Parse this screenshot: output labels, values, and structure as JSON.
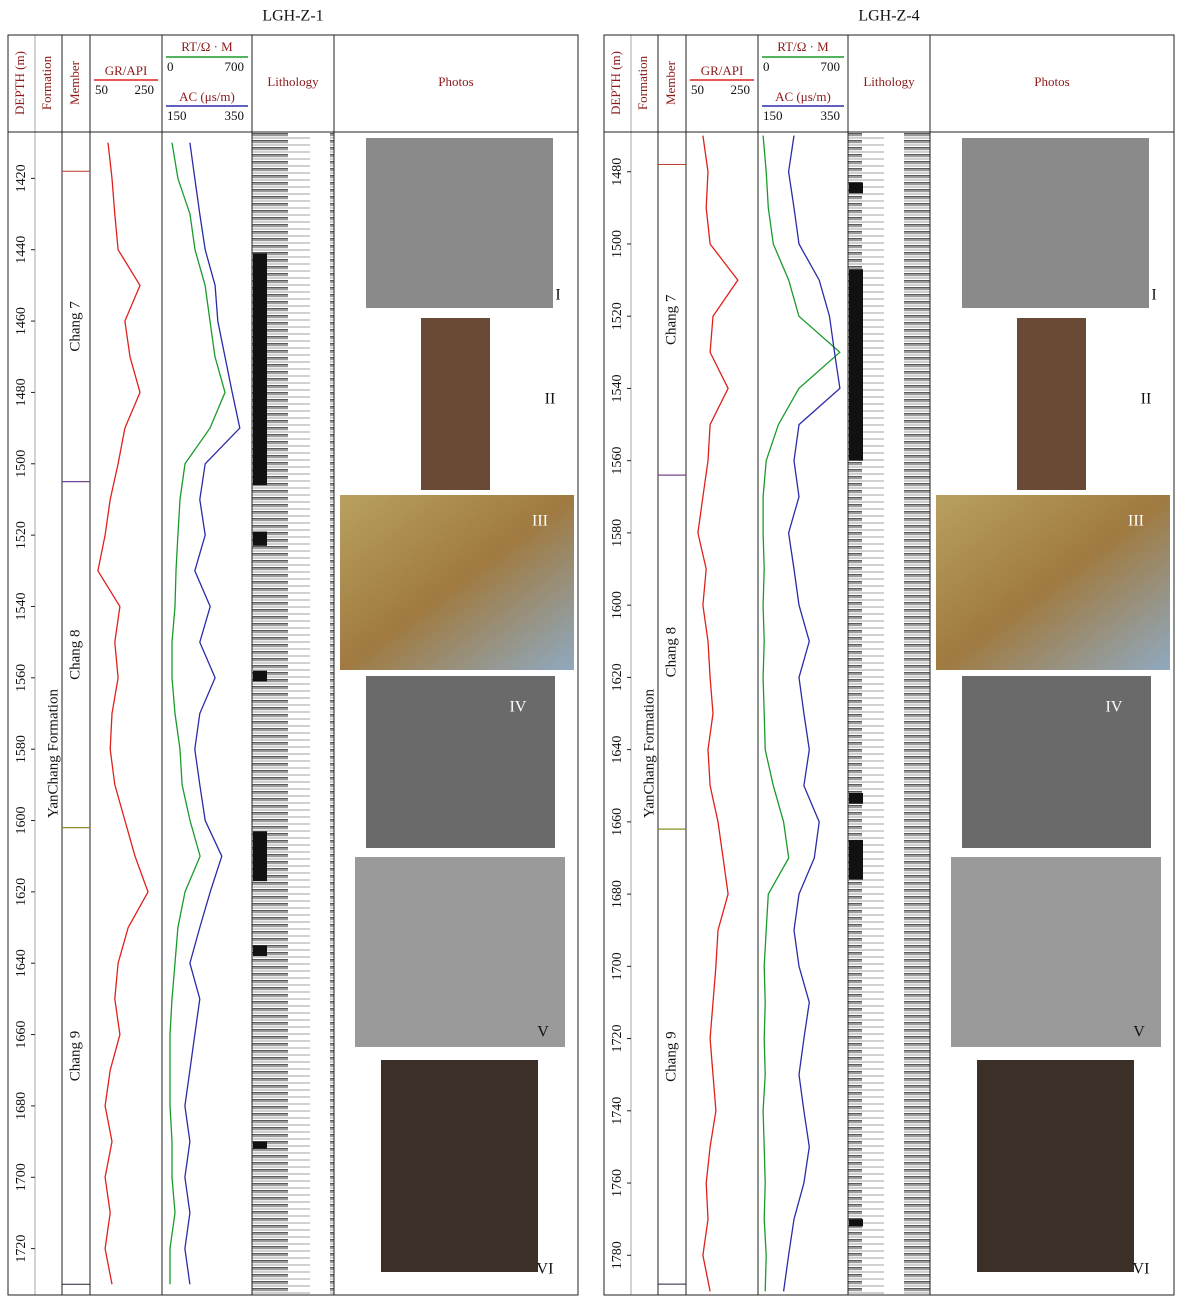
{
  "chart_data": [
    {
      "type": "well-log",
      "title": "LGH-Z-1",
      "headers": {
        "depth": "DEPTH (m)",
        "formation": "Formation",
        "member": "Member",
        "lithology": "Lithology",
        "photos": "Photos"
      },
      "formation_name": "YanChang Formation",
      "ylim": [
        1407,
        1733
      ],
      "yticks": [
        1420,
        1440,
        1460,
        1480,
        1500,
        1520,
        1540,
        1560,
        1580,
        1600,
        1620,
        1640,
        1660,
        1680,
        1700,
        1720
      ],
      "depth": [
        1410,
        1420,
        1430,
        1440,
        1450,
        1460,
        1470,
        1480,
        1490,
        1500,
        1510,
        1520,
        1530,
        1540,
        1550,
        1560,
        1570,
        1580,
        1590,
        1600,
        1610,
        1620,
        1630,
        1640,
        1650,
        1660,
        1670,
        1680,
        1690,
        1700,
        1710,
        1720,
        1730
      ],
      "curves": [
        {
          "name": "GR/API",
          "color": "#e0201b",
          "range": [
            50,
            250
          ],
          "values": [
            100,
            111,
            119,
            128,
            189,
            147,
            161,
            189,
            147,
            128,
            106,
            92,
            72,
            133,
            119,
            128,
            111,
            106,
            119,
            147,
            175,
            211,
            156,
            128,
            119,
            133,
            106,
            92,
            111,
            92,
            106,
            92,
            111
          ]
        },
        {
          "name": "RT/Ω · M",
          "color": "#1a9a2a",
          "range": [
            0,
            700
          ],
          "values": [
            78,
            124,
            218,
            257,
            335,
            373,
            412,
            490,
            373,
            179,
            140,
            124,
            109,
            101,
            78,
            78,
            101,
            140,
            156,
            218,
            296,
            179,
            124,
            101,
            78,
            62,
            62,
            62,
            78,
            78,
            101,
            62,
            62
          ]
        },
        {
          "name": "AC (μs/m)",
          "color": "#2b2ba8",
          "range": [
            150,
            350
          ],
          "values": [
            212,
            223,
            234,
            246,
            268,
            274,
            290,
            306,
            323,
            246,
            234,
            246,
            223,
            257,
            234,
            268,
            234,
            223,
            234,
            246,
            283,
            257,
            234,
            212,
            234,
            223,
            212,
            201,
            212,
            201,
            212,
            201,
            212
          ]
        }
      ],
      "members": [
        {
          "name": "Chang 7",
          "top": 1418,
          "bottom": 1505,
          "color": "#c0392b"
        },
        {
          "name": "Chang 8",
          "top": 1505,
          "bottom": 1602,
          "color": "#7b3fa0"
        },
        {
          "name": "Chang 9",
          "top": 1602,
          "bottom": 1730,
          "color": "#9a9a20"
        }
      ],
      "black_intervals": [
        [
          1441,
          1506
        ],
        [
          1603,
          1617
        ],
        [
          1519,
          1523
        ],
        [
          1558,
          1561
        ],
        [
          1635,
          1638
        ],
        [
          1690,
          1692
        ]
      ],
      "photos": [
        "I",
        "II",
        "III",
        "IV",
        "V",
        "VI"
      ]
    },
    {
      "type": "well-log",
      "title": "LGH-Z-4",
      "headers": {
        "depth": "DEPTH (m)",
        "formation": "Formation",
        "member": "Member",
        "lithology": "Lithology",
        "photos": "Photos"
      },
      "formation_name": "YanChang Formation",
      "ylim": [
        1469,
        1791
      ],
      "yticks": [
        1480,
        1500,
        1520,
        1540,
        1560,
        1580,
        1600,
        1620,
        1640,
        1660,
        1680,
        1700,
        1720,
        1740,
        1760,
        1780
      ],
      "depth": [
        1470,
        1480,
        1490,
        1500,
        1510,
        1520,
        1530,
        1540,
        1550,
        1560,
        1570,
        1580,
        1590,
        1600,
        1610,
        1620,
        1630,
        1640,
        1650,
        1660,
        1670,
        1680,
        1690,
        1700,
        1710,
        1720,
        1730,
        1740,
        1750,
        1760,
        1770,
        1780,
        1790
      ],
      "curves": [
        {
          "name": "GR/API",
          "color": "#e0201b",
          "range": [
            50,
            250
          ],
          "values": [
            97,
            111,
            106,
            117,
            194,
            125,
            117,
            167,
            117,
            111,
            97,
            83,
            106,
            97,
            111,
            117,
            125,
            111,
            117,
            139,
            153,
            167,
            139,
            133,
            125,
            117,
            125,
            133,
            117,
            106,
            111,
            97,
            117
          ]
        },
        {
          "name": "RT/Ω · M",
          "color": "#1a9a2a",
          "range": [
            0,
            700
          ],
          "values": [
            40,
            64,
            80,
            119,
            239,
            318,
            636,
            318,
            159,
            64,
            40,
            40,
            48,
            40,
            48,
            40,
            48,
            56,
            119,
            199,
            239,
            80,
            64,
            48,
            56,
            48,
            56,
            40,
            48,
            56,
            48,
            64,
            56
          ]
        },
        {
          "name": "AC (μs/m)",
          "color": "#2b2ba8",
          "range": [
            150,
            350
          ],
          "values": [
            230,
            218,
            230,
            241,
            286,
            309,
            320,
            332,
            241,
            230,
            241,
            218,
            230,
            241,
            264,
            241,
            252,
            264,
            252,
            286,
            275,
            241,
            230,
            241,
            264,
            252,
            241,
            252,
            264,
            252,
            230,
            218,
            207
          ]
        }
      ],
      "members": [
        {
          "name": "Chang 7",
          "top": 1478,
          "bottom": 1564,
          "color": "#c0392b"
        },
        {
          "name": "Chang 8",
          "top": 1564,
          "bottom": 1662,
          "color": "#7b3fa0"
        },
        {
          "name": "Chang 9",
          "top": 1662,
          "bottom": 1788,
          "color": "#9a9a20"
        }
      ],
      "black_intervals": [
        [
          1507,
          1560
        ],
        [
          1665,
          1676
        ],
        [
          1483,
          1486
        ],
        [
          1652,
          1655
        ],
        [
          1770,
          1772
        ]
      ],
      "photos": [
        "I",
        "II",
        "III",
        "IV",
        "V",
        "VI"
      ]
    }
  ]
}
